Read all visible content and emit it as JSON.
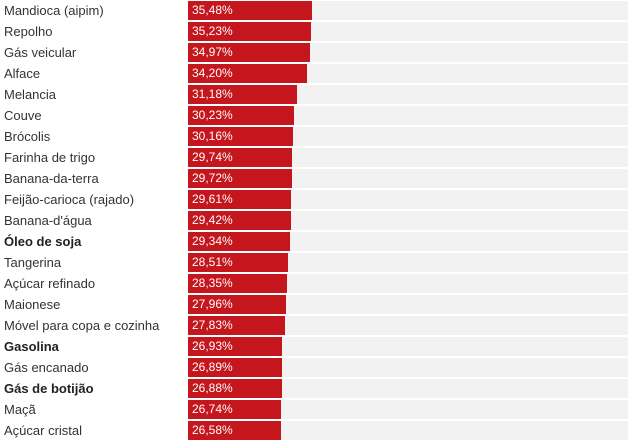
{
  "chart_data": {
    "type": "bar",
    "orientation": "horizontal",
    "bar_color": "#c4161c",
    "track_color": "#f2f2f2",
    "categories": [
      "Mandioca (aipim)",
      "Repolho",
      "Gás veicular",
      "Alface",
      "Melancia",
      "Couve",
      "Brócolis",
      "Farinha de trigo",
      "Banana-da-terra",
      "Feijão-carioca (rajado)",
      "Banana-d'água",
      "Óleo de soja",
      "Tangerina",
      "Açúcar refinado",
      "Maionese",
      "Móvel para copa e cozinha",
      "Gasolina",
      "Gás encanado",
      "Gás de botijão",
      "Maçã",
      "Açúcar cristal"
    ],
    "values": [
      35.48,
      35.23,
      34.97,
      34.2,
      31.18,
      30.23,
      30.16,
      29.74,
      29.72,
      29.61,
      29.42,
      29.34,
      28.51,
      28.35,
      27.96,
      27.83,
      26.93,
      26.89,
      26.88,
      26.74,
      26.58
    ],
    "value_labels": [
      "35,48%",
      "35,23%",
      "34,97%",
      "34,20%",
      "31,18%",
      "30,23%",
      "30,16%",
      "29,74%",
      "29,72%",
      "29,61%",
      "29,42%",
      "29,34%",
      "28,51%",
      "28,35%",
      "27,96%",
      "27,83%",
      "26,93%",
      "26,89%",
      "26,88%",
      "26,74%",
      "26,58%"
    ],
    "bold_categories": [
      "Óleo de soja",
      "Gasolina",
      "Gás de botijão"
    ],
    "xlim": [
      0,
      126
    ]
  }
}
